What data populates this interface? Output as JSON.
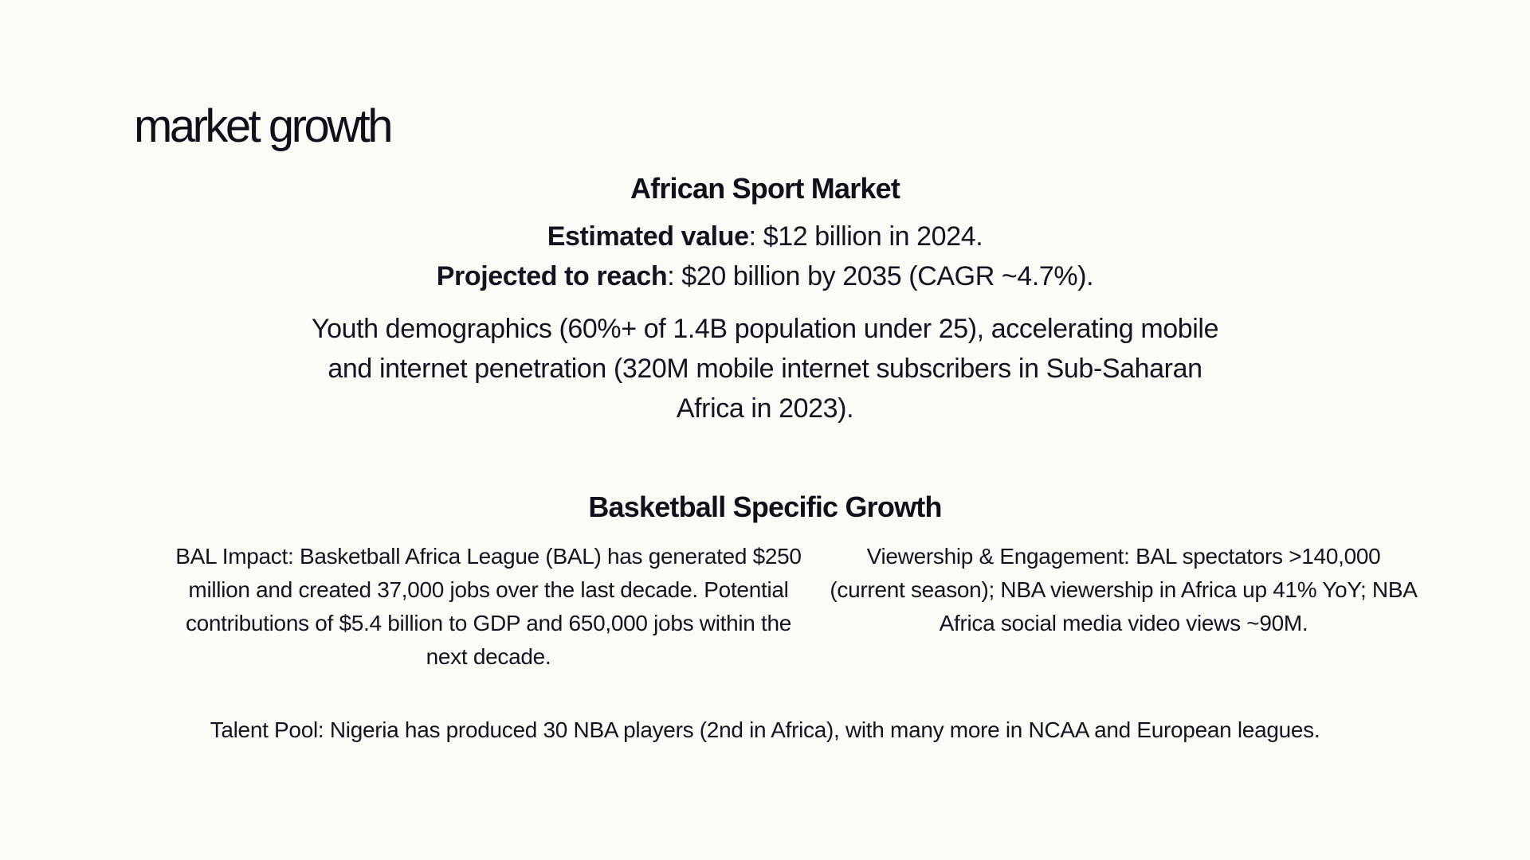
{
  "slide": {
    "title": "market growth"
  },
  "african_market": {
    "heading": "African Sport Market",
    "estimated_label": "Estimated value",
    "estimated_value": ": $12 billion in 2024.",
    "projected_label": "Projected to reach",
    "projected_value": ": $20 billion by 2035 (CAGR ~4.7%).",
    "demographics": "Youth demographics (60%+ of 1.4B population under 25), accelerating mobile and internet penetration (320M mobile internet subscribers in Sub-Saharan Africa in 2023)."
  },
  "basketball": {
    "heading": "Basketball Specific Growth",
    "bal_impact": "BAL Impact: Basketball Africa League (BAL) has generated $250 million and created 37,000 jobs over the last decade. Potential contributions of $5.4 billion to GDP and 650,000 jobs within the next decade.",
    "viewership": "Viewership & Engagement: BAL spectators >140,000 (current season); NBA viewership in Africa up 41% YoY; NBA Africa social media video views ~90M.",
    "talent_pool": "Talent Pool: Nigeria has produced 30 NBA players (2nd in Africa), with many more in NCAA and European leagues."
  }
}
